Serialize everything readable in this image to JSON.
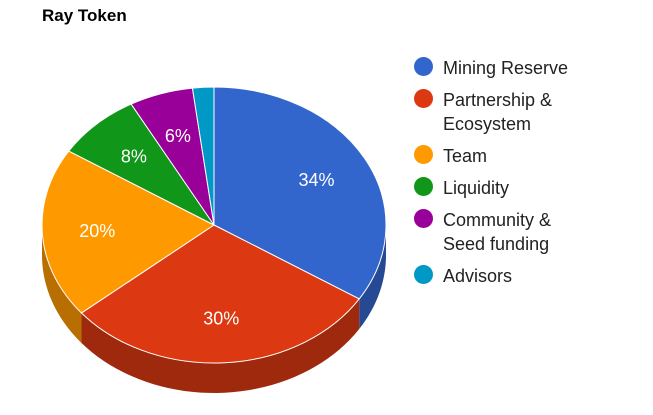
{
  "chart_data": {
    "type": "pie",
    "title": "Ray Token",
    "legend_position": "right",
    "three_d": true,
    "slices": [
      {
        "label": "Mining Reserve",
        "value": 34,
        "display": "34%",
        "color": "#3366cc"
      },
      {
        "label": "Partnership & Ecosystem",
        "value": 30,
        "display": "30%",
        "color": "#dc3912"
      },
      {
        "label": "Team",
        "value": 20,
        "display": "20%",
        "color": "#ff9900"
      },
      {
        "label": "Liquidity",
        "value": 8,
        "display": "8%",
        "color": "#109618"
      },
      {
        "label": "Community & Seed funding",
        "value": 6,
        "display": "6%",
        "color": "#990099"
      },
      {
        "label": "Advisors",
        "value": 2,
        "display": "",
        "color": "#0099c6"
      }
    ]
  }
}
